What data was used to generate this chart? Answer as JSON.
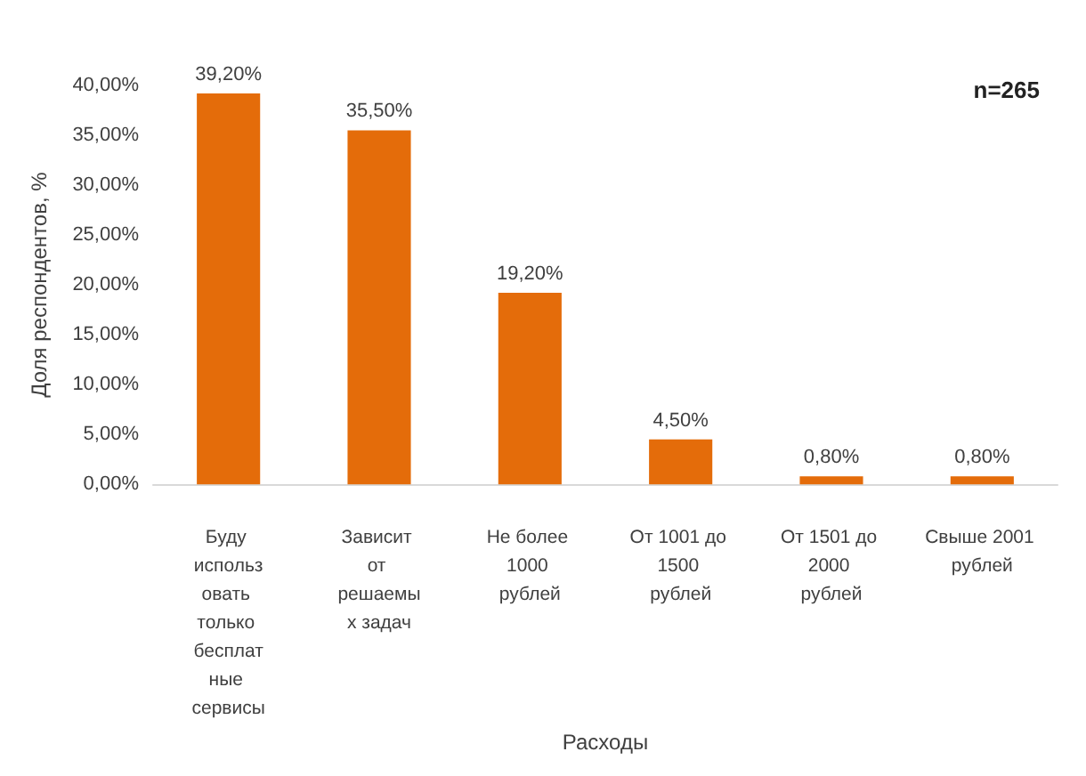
{
  "chart_data": {
    "type": "bar",
    "xlabel": "Расходы",
    "ylabel": "Доля респондентов, %",
    "categories": [
      "Буду использовать только бесплатные сервисы",
      "Зависит от решаемых задач",
      "Не более 1000 рублей",
      "От 1001 до 1500 рублей",
      "От 1501 до 2000 рублей",
      "Свыше 2001 рублей"
    ],
    "values": [
      39.2,
      35.5,
      19.2,
      4.5,
      0.8,
      0.8
    ],
    "value_labels": [
      "39,20%",
      "35,50%",
      "19,20%",
      "4,50%",
      "0,80%",
      "0,80%"
    ],
    "color": "#e46c0a",
    "ylim": [
      0,
      40
    ],
    "yticks": [
      {
        "value": 0,
        "label": "0,00%"
      },
      {
        "value": 5,
        "label": "5,00%"
      },
      {
        "value": 10,
        "label": "10,00%"
      },
      {
        "value": 15,
        "label": "15,00%"
      },
      {
        "value": 20,
        "label": "20,00%"
      },
      {
        "value": 25,
        "label": "25,00%"
      },
      {
        "value": 30,
        "label": "30,00%"
      },
      {
        "value": 35,
        "label": "35,00%"
      },
      {
        "value": 40,
        "label": "40,00%"
      }
    ],
    "annotations": [
      "n=265"
    ],
    "grid": false
  }
}
